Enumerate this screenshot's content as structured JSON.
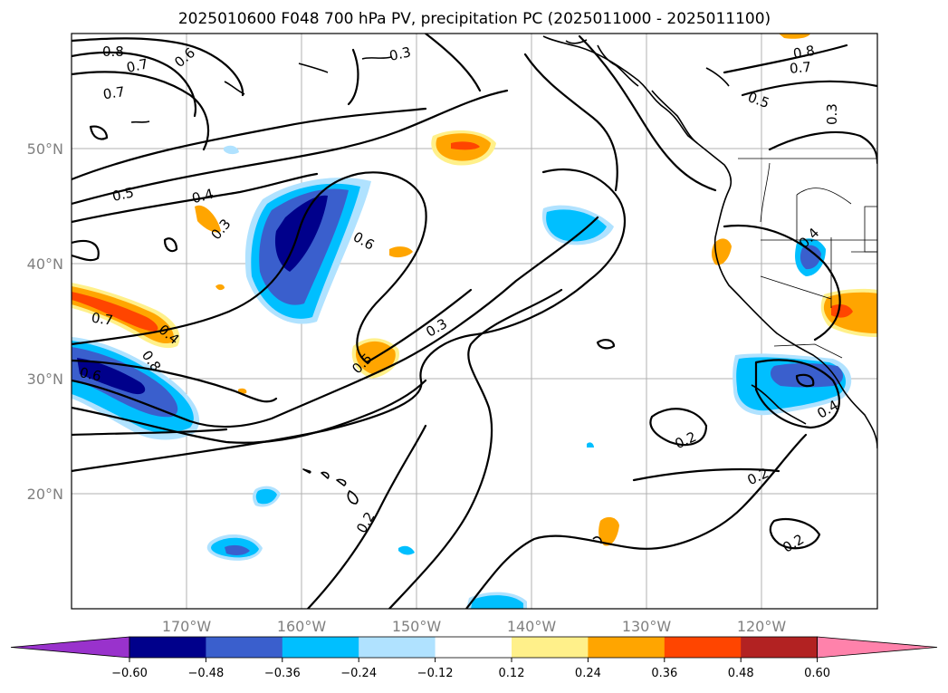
{
  "title": "2025010600 F048 700 hPa PV, precipitation PC (2025011000 - 2025011100)",
  "latitude_labels": [
    "50°N",
    "40°N",
    "30°N",
    "20°N"
  ],
  "longitude_labels": [
    "170°W",
    "160°W",
    "150°W",
    "140°W",
    "130°W",
    "120°W"
  ],
  "colorbar": {
    "ticks": [
      "−0.60",
      "−0.48",
      "−0.36",
      "−0.24",
      "−0.12",
      "0.12",
      "0.24",
      "0.36",
      "0.48",
      "0.60"
    ],
    "colors": [
      "#9932cc",
      "#00008b",
      "#3a5fcd",
      "#00bfff",
      "#b0e2ff",
      "#ffffff",
      "#fff08a",
      "#ffa500",
      "#ff4500",
      "#b22222",
      "#ff82ab"
    ]
  },
  "contour_labels": [
    "0.8",
    "0.7",
    "0.6",
    "0.3",
    "0.7",
    "0.5",
    "0.4",
    "0.3",
    "0.6",
    "0.7",
    "0.4",
    "0.6",
    "0.8",
    "0.5",
    "0.3",
    "0.8",
    "0.7",
    "0.5",
    "0.3",
    "0.4",
    "0.4",
    "0.2",
    "0.2",
    "0.2",
    "0.2"
  ],
  "map_extent": {
    "lon": [
      -180,
      -110
    ],
    "lat": [
      10,
      60
    ]
  }
}
